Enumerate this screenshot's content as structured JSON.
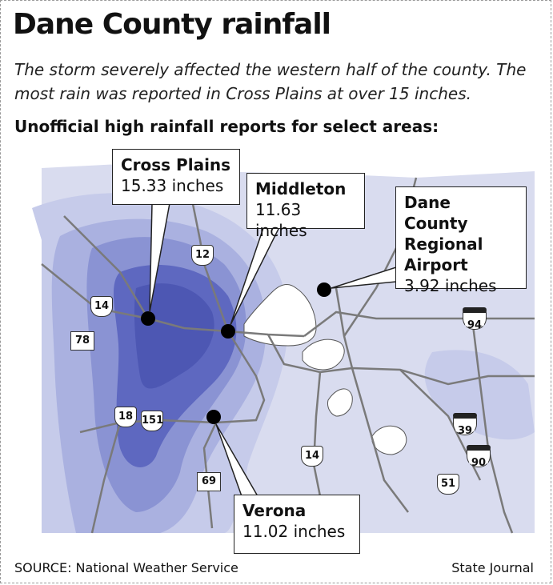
{
  "title": "Dane County rainfall",
  "subtitle": "The storm severely affected the western half of the county. The most rain was reported in Cross Plains at over 15 inches.",
  "subhead": "Unofficial high rainfall reports for select areas:",
  "locations": [
    {
      "name": "Cross Plains",
      "value": "15.33 inches"
    },
    {
      "name": "Middleton",
      "value": "11.63 inches"
    },
    {
      "name": "Dane County Regional Airport",
      "value": "3.92 inches"
    },
    {
      "name": "Verona",
      "value": "11.02 inches"
    }
  ],
  "airport_label_lines": [
    "Dane County",
    "Regional",
    "Airport"
  ],
  "highways": {
    "state": [
      "78",
      "18",
      "69"
    ],
    "us": [
      "12",
      "14",
      "151",
      "14"
    ],
    "interstate": [
      "94",
      "39",
      "90"
    ],
    "other": [
      "51"
    ]
  },
  "source": "SOURCE: National Weather Service",
  "credit": "State Journal",
  "colors": {
    "rain_lightest": "#d9dcef",
    "rain_light": "#b7bde3",
    "rain_mid": "#9aa2d8",
    "rain_heavy": "#6f7ac8",
    "rain_heaviest": "#4d57b3",
    "lake": "#ffffff",
    "road": "#808080"
  }
}
